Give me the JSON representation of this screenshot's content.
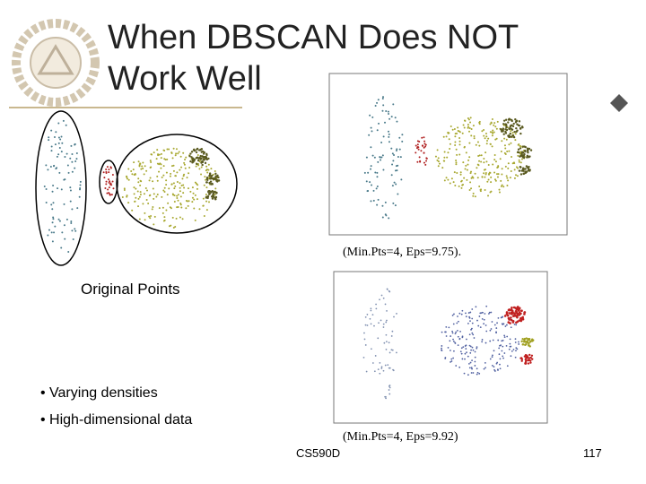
{
  "title": [
    "When DBSCAN Does NOT",
    "Work Well"
  ],
  "original_caption": "Original Points",
  "figures": [
    {
      "caption": "(Min.Pts=4, Eps=9.75)."
    },
    {
      "caption": "(Min.Pts=4, Eps=9.92)"
    }
  ],
  "bullets": [
    "• Varying densities",
    "• High-dimensional data"
  ],
  "footer": {
    "course": "CS590D",
    "page": "117"
  }
}
